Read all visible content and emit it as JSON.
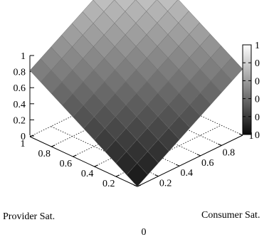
{
  "chart_data": {
    "type": "surface3d",
    "x": [
      0,
      0.1,
      0.2,
      0.3,
      0.4,
      0.5,
      0.6,
      0.7,
      0.8,
      0.9,
      1
    ],
    "y": [
      0,
      0.1,
      0.2,
      0.3,
      0.4,
      0.5,
      0.6,
      0.7,
      0.8,
      0.9,
      1
    ],
    "z_formula": "(x + y) / 2",
    "xlabel": "Provider Sat.",
    "ylabel": "Consumer Sat.",
    "xlim": [
      0,
      1
    ],
    "ylim": [
      0,
      1
    ],
    "zlim": [
      0,
      1
    ],
    "x_ticks": [
      "0",
      "0.2",
      "0.4",
      "0.6",
      "0.8",
      "1"
    ],
    "y_ticks": [
      "0",
      "0.2",
      "0.4",
      "0.6",
      "0.8",
      "1"
    ],
    "z_ticks": [
      "0",
      "0.2",
      "0.4",
      "0.6",
      "0.8",
      "1"
    ],
    "colorbar_ticks": [
      "0",
      "0",
      "0",
      "0",
      "0",
      "1"
    ],
    "colormap": "grayscale",
    "grid": true,
    "colorbar_position": "right"
  }
}
